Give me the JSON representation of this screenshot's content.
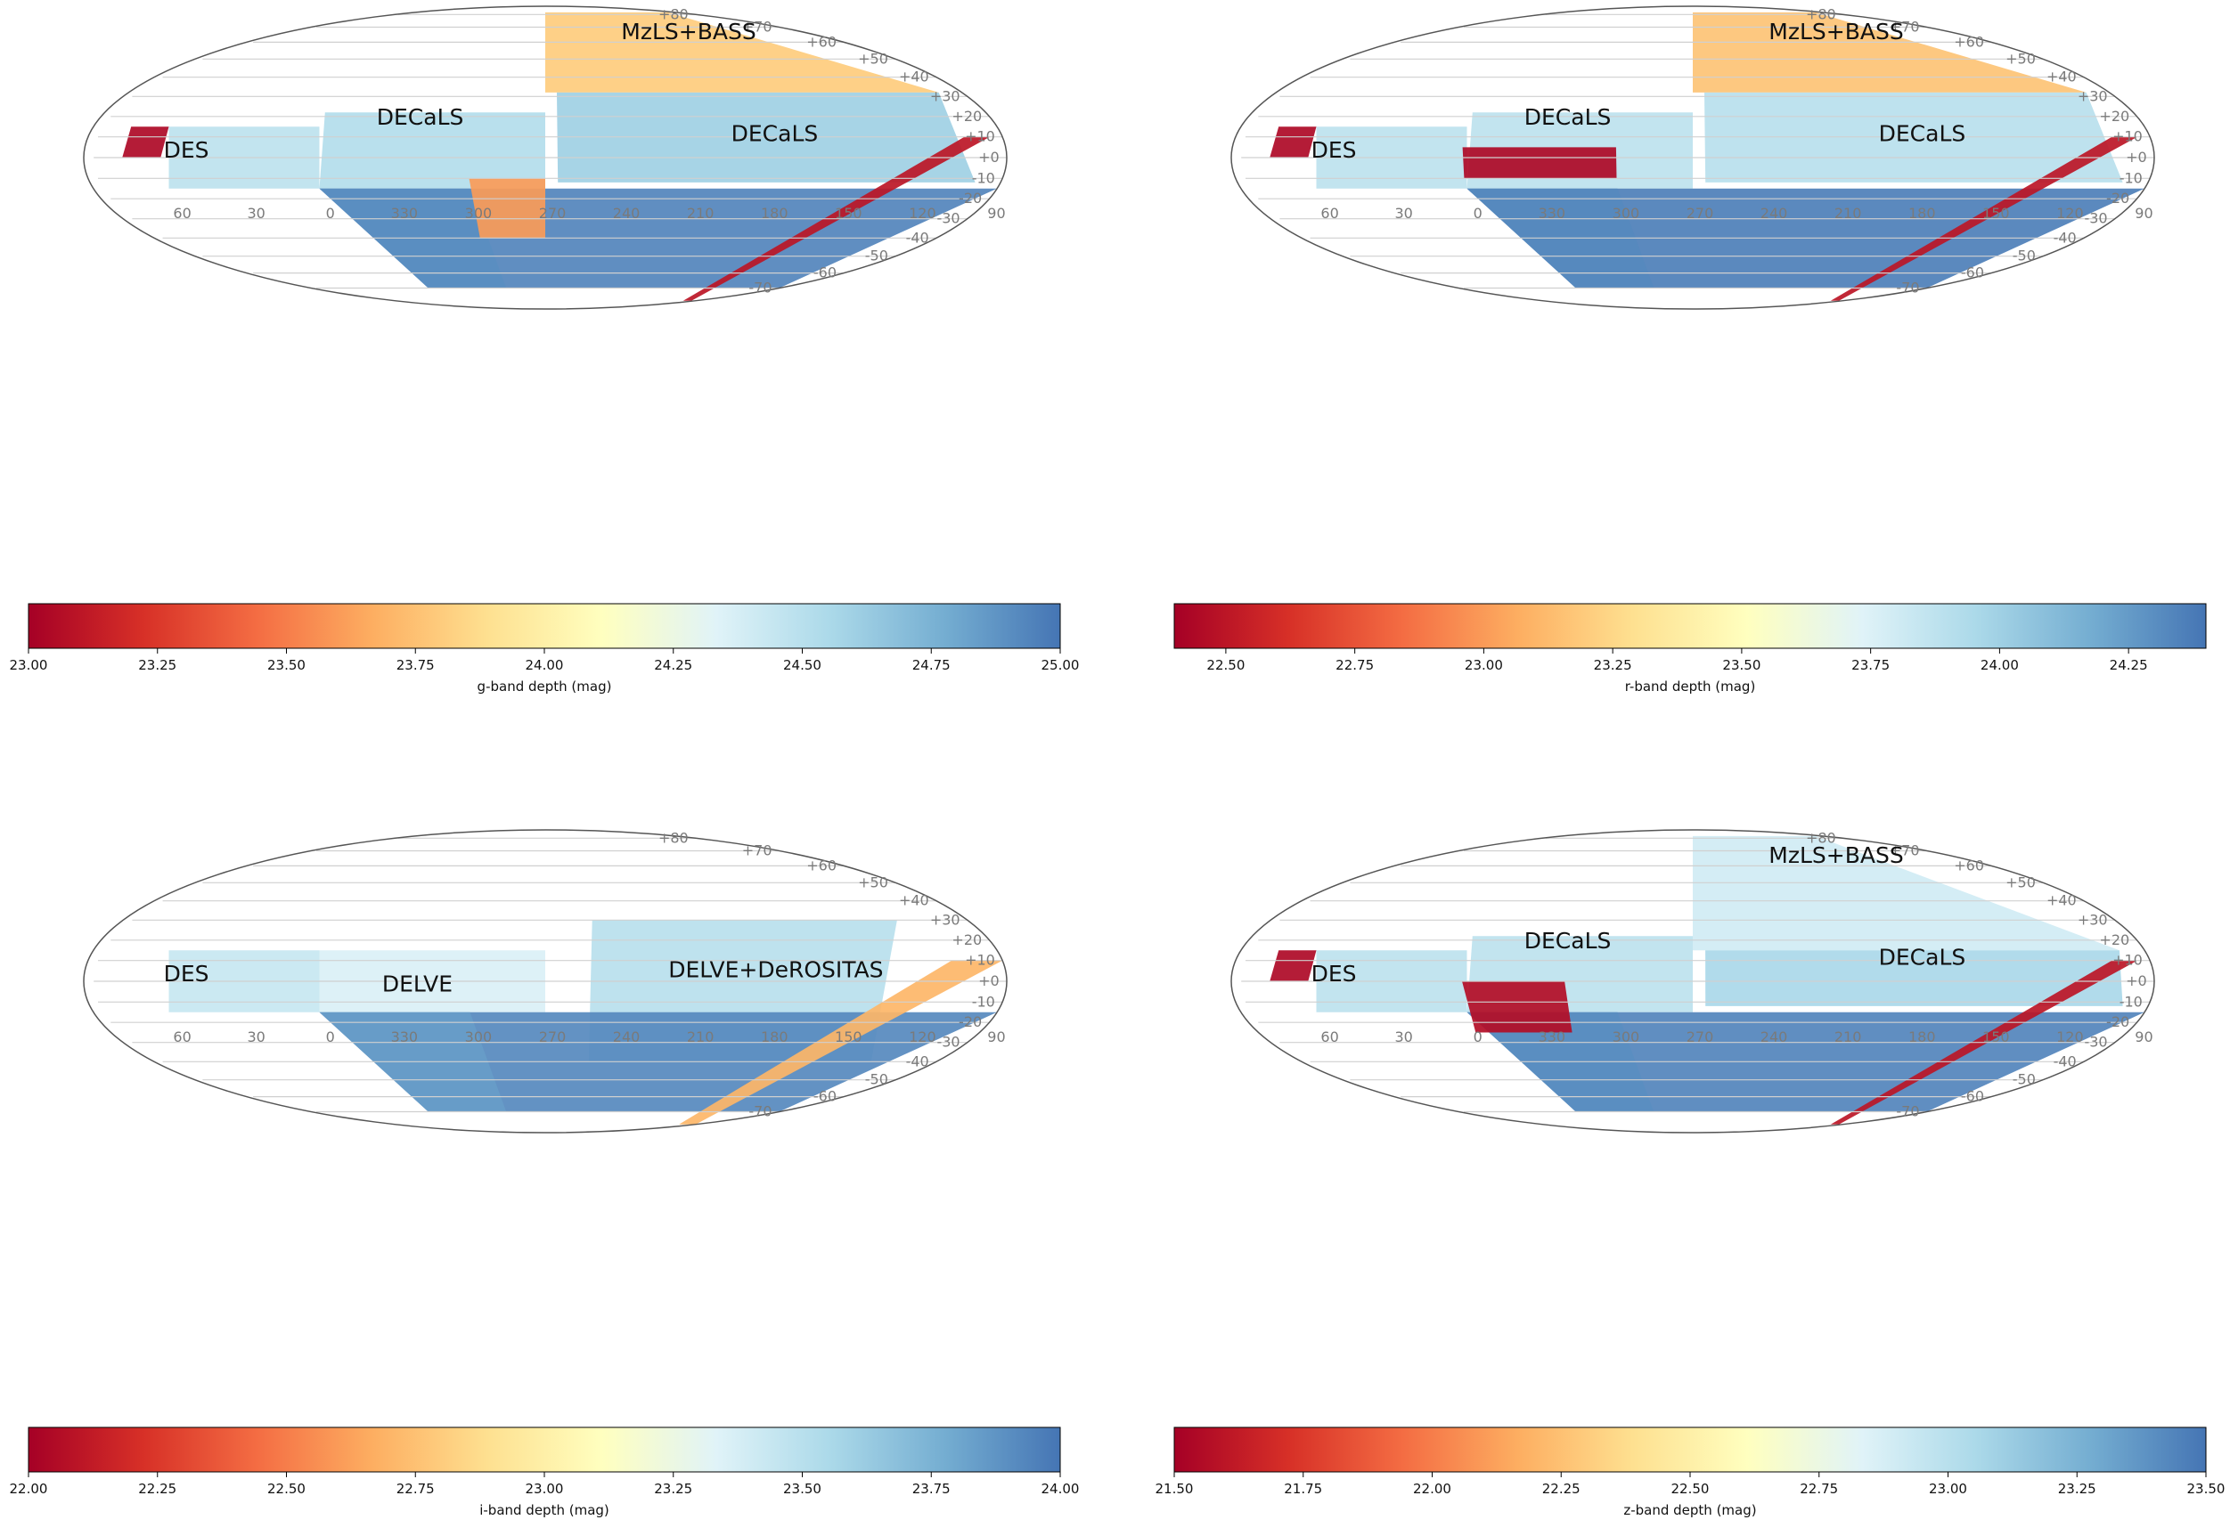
{
  "chart_data": [
    {
      "type": "heatmap",
      "projection": "mollweide",
      "colormap": "RdYlBu",
      "colorbar_label": "g-band depth (mag)",
      "range": [
        23.0,
        25.0
      ],
      "ticks": [
        "23.00",
        "23.25",
        "23.50",
        "23.75",
        "24.00",
        "24.25",
        "24.50",
        "24.75",
        "25.00"
      ],
      "dec_ticks": [
        "+80",
        "+70",
        "+60",
        "+50",
        "+40",
        "+30",
        "+20",
        "+10",
        "+0",
        "-10",
        "-20",
        "-30",
        "-40",
        "-50",
        "-60",
        "-70"
      ],
      "ra_ticks": [
        "60",
        "30",
        "0",
        "330",
        "300",
        "270",
        "240",
        "210",
        "180",
        "150",
        "120",
        "90"
      ],
      "survey_labels": [
        "MzLS+BASS",
        "DECaLS",
        "DECaLS",
        "DES"
      ]
    },
    {
      "type": "heatmap",
      "projection": "mollweide",
      "colormap": "RdYlBu",
      "colorbar_label": "r-band depth (mag)",
      "range": [
        22.4,
        24.4
      ],
      "ticks": [
        "22.50",
        "22.75",
        "23.00",
        "23.25",
        "23.50",
        "23.75",
        "24.00",
        "24.25"
      ],
      "dec_ticks": [
        "+80",
        "+70",
        "+60",
        "+50",
        "+40",
        "+30",
        "+20",
        "+10",
        "+0",
        "-10",
        "-20",
        "-30",
        "-40",
        "-50",
        "-60",
        "-70"
      ],
      "ra_ticks": [
        "60",
        "30",
        "0",
        "330",
        "300",
        "270",
        "240",
        "210",
        "180",
        "150",
        "120",
        "90"
      ],
      "survey_labels": [
        "MzLS+BASS",
        "DECaLS",
        "DECaLS",
        "DES"
      ]
    },
    {
      "type": "heatmap",
      "projection": "mollweide",
      "colormap": "RdYlBu",
      "colorbar_label": "i-band depth (mag)",
      "range": [
        22.0,
        24.0
      ],
      "ticks": [
        "22.00",
        "22.25",
        "22.50",
        "22.75",
        "23.00",
        "23.25",
        "23.50",
        "23.75",
        "24.00"
      ],
      "dec_ticks": [
        "+80",
        "+70",
        "+60",
        "+50",
        "+40",
        "+30",
        "+20",
        "+10",
        "+0",
        "-10",
        "-20",
        "-30",
        "-40",
        "-50",
        "-60",
        "-70"
      ],
      "ra_ticks": [
        "60",
        "30",
        "0",
        "330",
        "300",
        "270",
        "240",
        "210",
        "180",
        "150",
        "120",
        "90"
      ],
      "survey_labels": [
        "DES",
        "DELVE",
        "DELVE+DeROSITAS"
      ]
    },
    {
      "type": "heatmap",
      "projection": "mollweide",
      "colormap": "RdYlBu",
      "colorbar_label": "z-band depth (mag)",
      "range": [
        21.5,
        23.5
      ],
      "ticks": [
        "21.50",
        "21.75",
        "22.00",
        "22.25",
        "22.50",
        "22.75",
        "23.00",
        "23.25",
        "23.50"
      ],
      "dec_ticks": [
        "+80",
        "+70",
        "+60",
        "+50",
        "+40",
        "+30",
        "+20",
        "+10",
        "+0",
        "-10",
        "-20",
        "-30",
        "-40",
        "-50",
        "-60",
        "-70"
      ],
      "ra_ticks": [
        "60",
        "30",
        "0",
        "330",
        "300",
        "270",
        "240",
        "210",
        "180",
        "150",
        "120",
        "90"
      ],
      "survey_labels": [
        "MzLS+BASS",
        "DECaLS",
        "DECaLS",
        "DES"
      ]
    }
  ],
  "colors": {
    "colormap_stops": [
      "#a50026",
      "#d73027",
      "#f46d43",
      "#fdae61",
      "#fee090",
      "#ffffbf",
      "#e0f3f8",
      "#abd9e9",
      "#74add1",
      "#4575b4"
    ],
    "grid": "#d0d0d0",
    "galactic_plane": "#8c8c8c",
    "outline": "#555555"
  }
}
